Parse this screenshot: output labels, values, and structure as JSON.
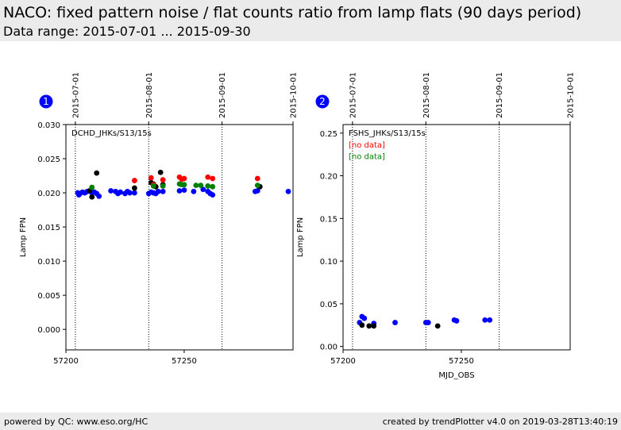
{
  "header": {
    "title": "NACO: fixed pattern noise / flat counts ratio from lamp flats (90 days period)",
    "subtitle": "Data range: 2015-07-01 ... 2015-09-30"
  },
  "footer": {
    "left": "powered by QC: www.eso.org/HC",
    "right": "created by trendPlotter v4.0 on 2019-03-28T13:40:19"
  },
  "colors": {
    "blue": "#0000ff",
    "black": "#000000",
    "red": "#ff0000",
    "green": "#008000"
  },
  "chart_data": [
    {
      "type": "scatter",
      "badge": "1",
      "panel_label": "DCHD_JHKs/S13/15s",
      "annotations": [],
      "xlabel": "",
      "ylabel": "Lamp FPN",
      "xlim": [
        57200,
        57296
      ],
      "ylim": [
        -0.003,
        0.03
      ],
      "xticks": [
        57200,
        57250
      ],
      "yticks": [
        0.0,
        0.005,
        0.01,
        0.015,
        0.02,
        0.025,
        0.03
      ],
      "ytick_labels": [
        "0.000",
        "0.005",
        "0.010",
        "0.015",
        "0.020",
        "0.025",
        "0.030"
      ],
      "date_ticks": [
        {
          "mjd": 57204,
          "label": "2015-07-01"
        },
        {
          "mjd": 57235,
          "label": "2015-08-01"
        },
        {
          "mjd": 57266,
          "label": "2015-09-01"
        },
        {
          "mjd": 57296,
          "label": "2015-10-01"
        }
      ],
      "series": [
        {
          "color": "blue",
          "points": [
            [
              57205,
              0.02
            ],
            [
              57205.5,
              0.0197
            ],
            [
              57206,
              0.0199
            ],
            [
              57207,
              0.0201
            ],
            [
              57208,
              0.02
            ],
            [
              57209,
              0.0202
            ],
            [
              57211,
              0.02
            ],
            [
              57212,
              0.0201
            ],
            [
              57213,
              0.0199
            ],
            [
              57214,
              0.0195
            ],
            [
              57219,
              0.0203
            ],
            [
              57221,
              0.0202
            ],
            [
              57222,
              0.0199
            ],
            [
              57223,
              0.0201
            ],
            [
              57225,
              0.0199
            ],
            [
              57226,
              0.0202
            ],
            [
              57227,
              0.02
            ],
            [
              57229,
              0.02
            ],
            [
              57235,
              0.0199
            ],
            [
              57236,
              0.0201
            ],
            [
              57237,
              0.02
            ],
            [
              57238,
              0.0199
            ],
            [
              57239,
              0.0202
            ],
            [
              57241,
              0.0202
            ],
            [
              57248,
              0.0203
            ],
            [
              57250,
              0.0204
            ],
            [
              57254,
              0.0202
            ],
            [
              57258,
              0.0205
            ],
            [
              57260,
              0.0202
            ],
            [
              57261,
              0.0199
            ],
            [
              57262,
              0.0197
            ],
            [
              57280,
              0.0202
            ],
            [
              57281,
              0.0203
            ],
            [
              57294,
              0.0202
            ]
          ]
        },
        {
          "color": "black",
          "points": [
            [
              57210,
              0.0203
            ],
            [
              57211,
              0.0194
            ],
            [
              57213,
              0.0229
            ],
            [
              57229,
              0.0207
            ],
            [
              57236,
              0.0215
            ],
            [
              57237,
              0.0213
            ],
            [
              57238,
              0.0209
            ],
            [
              57240,
              0.023
            ],
            [
              57241,
              0.0212
            ],
            [
              57282,
              0.0209
            ]
          ]
        },
        {
          "color": "red",
          "points": [
            [
              57229,
              0.0218
            ],
            [
              57236,
              0.0222
            ],
            [
              57237,
              0.0212
            ],
            [
              57241,
              0.0219
            ],
            [
              57248,
              0.0223
            ],
            [
              57249,
              0.022
            ],
            [
              57250,
              0.0221
            ],
            [
              57260,
              0.0223
            ],
            [
              57262,
              0.0221
            ],
            [
              57281,
              0.0221
            ]
          ]
        },
        {
          "color": "green",
          "points": [
            [
              57211,
              0.0208
            ],
            [
              57237,
              0.021
            ],
            [
              57241,
              0.021
            ],
            [
              57248,
              0.0213
            ],
            [
              57249,
              0.0212
            ],
            [
              57250,
              0.0212
            ],
            [
              57255,
              0.0211
            ],
            [
              57257,
              0.0211
            ],
            [
              57260,
              0.021
            ],
            [
              57262,
              0.0209
            ],
            [
              57281,
              0.0211
            ]
          ]
        }
      ]
    },
    {
      "type": "scatter",
      "badge": "2",
      "panel_label": "FSHS_JHKs/S13/15s",
      "annotations": [
        {
          "text": "[no data]",
          "color": "red"
        },
        {
          "text": "[no data]",
          "color": "green"
        }
      ],
      "xlabel": "MJD_OBS",
      "ylabel": "Lamp FPN",
      "xlim": [
        57200,
        57296
      ],
      "ylim": [
        -0.004,
        0.26
      ],
      "xticks": [
        57200,
        57250
      ],
      "yticks": [
        0.0,
        0.05,
        0.1,
        0.15,
        0.2,
        0.25
      ],
      "ytick_labels": [
        "0.00",
        "0.05",
        "0.10",
        "0.15",
        "0.20",
        "0.25"
      ],
      "date_ticks": [
        {
          "mjd": 57204,
          "label": "2015-07-01"
        },
        {
          "mjd": 57235,
          "label": "2015-08-01"
        },
        {
          "mjd": 57266,
          "label": "2015-09-01"
        },
        {
          "mjd": 57296,
          "label": "2015-10-01"
        }
      ],
      "series": [
        {
          "color": "blue",
          "points": [
            [
              57207,
              0.028
            ],
            [
              57208,
              0.035
            ],
            [
              57209,
              0.033
            ],
            [
              57213,
              0.027
            ],
            [
              57222,
              0.028
            ],
            [
              57235,
              0.028
            ],
            [
              57236,
              0.028
            ],
            [
              57247,
              0.031
            ],
            [
              57248,
              0.03
            ],
            [
              57260,
              0.031
            ],
            [
              57262,
              0.031
            ]
          ]
        },
        {
          "color": "black",
          "points": [
            [
              57208,
              0.025
            ],
            [
              57211,
              0.024
            ],
            [
              57213,
              0.024
            ],
            [
              57240,
              0.024
            ]
          ]
        }
      ]
    }
  ]
}
